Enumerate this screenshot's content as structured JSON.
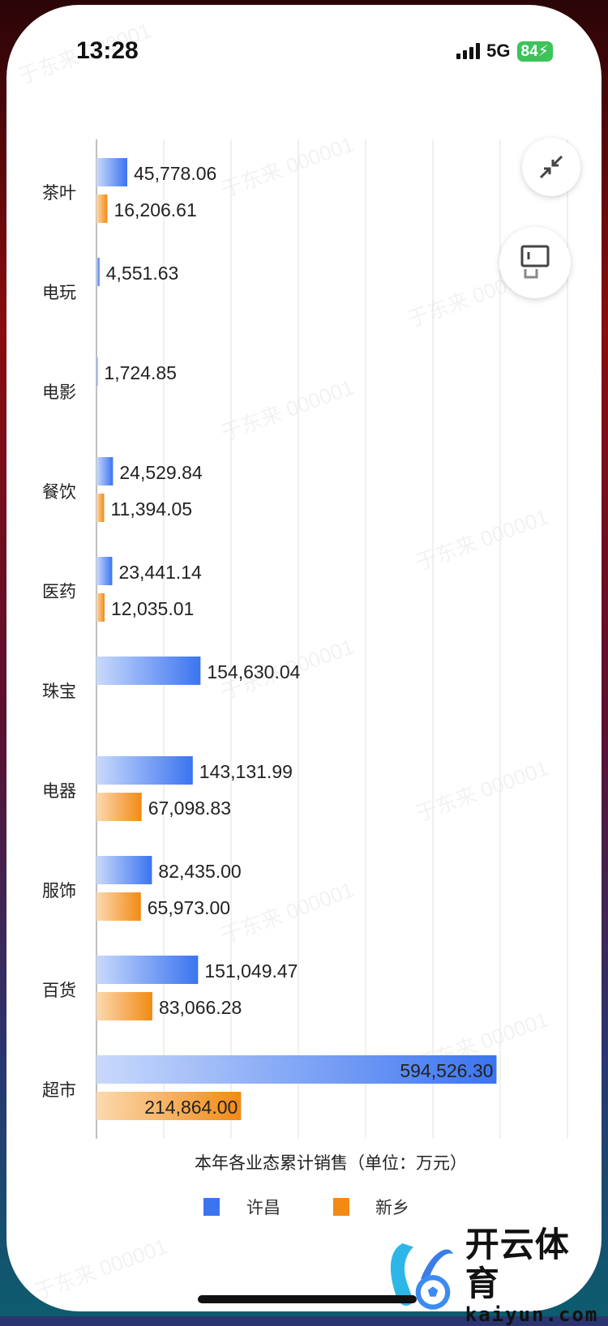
{
  "status_bar": {
    "time": "13:28",
    "network": "5G",
    "battery": "84"
  },
  "controls": {
    "collapse_icon": "compress-arrows-icon",
    "layout_icon": "window-layout-icon"
  },
  "watermark": "于东来 000001",
  "logo": {
    "name": "开云体育",
    "domain": "kaiyun.com"
  },
  "colors": {
    "xuchang": "#3b74f0",
    "xinxiang": "#f28a14"
  },
  "chart_data": {
    "type": "bar",
    "orientation": "horizontal",
    "categories": [
      "茶叶",
      "电玩",
      "电影",
      "餐饮",
      "医药",
      "珠宝",
      "电器",
      "服饰",
      "百货",
      "超市"
    ],
    "series": [
      {
        "name": "许昌",
        "values": [
          45778.06,
          4551.63,
          1724.85,
          24529.84,
          23441.14,
          154630.04,
          143131.99,
          82435.0,
          151049.47,
          594526.3
        ],
        "labels": [
          "45,778.06",
          "4,551.63",
          "1,724.85",
          "24,529.84",
          "23,441.14",
          "154,630.04",
          "143,131.99",
          "82,435.00",
          "151,049.47",
          "594,526.30"
        ]
      },
      {
        "name": "新乡",
        "values": [
          16206.61,
          null,
          null,
          11394.05,
          12035.01,
          null,
          67098.83,
          65973.0,
          83066.28,
          214864.0
        ],
        "labels": [
          "16,206.61",
          "",
          "",
          "11,394.05",
          "12,035.01",
          "",
          "67,098.83",
          "65,973.00",
          "83,066.28",
          "214,864.00"
        ]
      }
    ],
    "xlabel": "本年各业态累计销售（单位：万元）",
    "xlim": [
      0,
      700000
    ],
    "grid": true,
    "legend": "bottom"
  }
}
